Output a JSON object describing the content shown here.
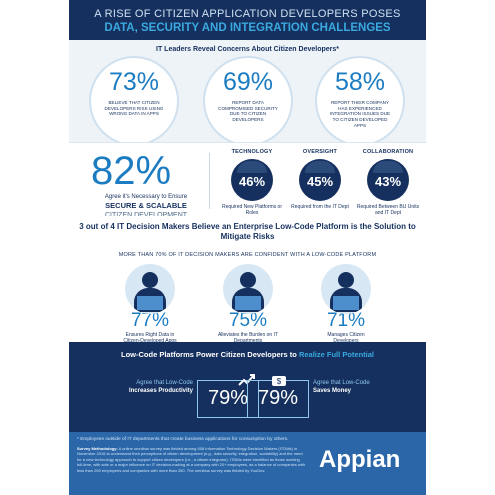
{
  "header": {
    "line1": "A RISE OF CITIZEN APPLICATION DEVELOPERS POSES",
    "line2": "DATA, SECURITY AND INTEGRATION CHALLENGES"
  },
  "concerns": {
    "heading": "IT Leaders Reveal Concerns About Citizen Developers*",
    "items": [
      {
        "pct": "73%",
        "caption": "BELIEVE THAT CITIZEN DEVELOPERS RISK USING WRONG DATA IN APPS"
      },
      {
        "pct": "69%",
        "caption": "REPORT DATA COMPROMISED SECURITY DUE TO CITIZEN DEVELOPERS"
      },
      {
        "pct": "58%",
        "caption": "REPORT THEIR COMPANY HAS EXPERIENCED INTEGRATION ISSUES DUE TO CITIZEN DEVELOPED APPS"
      }
    ]
  },
  "secure": {
    "pct": "82%",
    "line1": "Agree it's Necessary to Ensure",
    "line2": "SECURE & SCALABLE",
    "line3": "CITIZEN DEVELOPMENT",
    "stats": [
      {
        "label": "TECHNOLOGY",
        "pct": "46%",
        "sub": "Required New Platforms or Roles"
      },
      {
        "label": "OVERSIGHT",
        "pct": "45%",
        "sub": "Required from the IT Dept"
      },
      {
        "label": "COLLABORATION",
        "pct": "43%",
        "sub": "Required Between BU Units and IT Dept"
      }
    ]
  },
  "lowcode": {
    "heading": "3 out of 4 IT Decision Makers Believe an Enterprise Low-Code Platform is the Solution to Mitigate Risks",
    "sub": "MORE THAN 70% OF IT DECISION MAKERS ARE CONFIDENT WITH A LOW-CODE PLATFORM",
    "items": [
      {
        "pct": "77%",
        "caption": "Ensures Right Data in Citizen-Developed Apps"
      },
      {
        "pct": "75%",
        "caption": "Alleviates the Burden on IT Departments"
      },
      {
        "pct": "71%",
        "caption": "Manages Citizen Developers"
      }
    ]
  },
  "power": {
    "heading_a": "Low-Code Platforms Power Citizen Developers to ",
    "heading_b": "Realize Full Potential",
    "left_a": "Agree that Low-Code",
    "left_b": "Increases Productivity",
    "left_pct": "79%",
    "right_a": "Agree that Low-Code",
    "right_b": "Saves Money",
    "right_pct": "79%"
  },
  "footer": {
    "footnote": "* Employees outside of IT departments that create business applications for consumption by others.",
    "method_label": "Survey Methodology:",
    "method_text": "A online omnibus survey was fielded among 508 Information Technology Decision Makers (ITDMs) in November 2016 to understand their perceptions of citizen development (e.g., data security, integration, scalability) and the need for a new technology approach to support citizen developers (i.e., a citizen integrator). ITDMs were identified as those working full-time, with sole or a major influence on IT decision-making at a company with 20+ employees, as a balance of companies with less than 250 employees and companies with more than 250. The omnibus survey was fielded by YouGov.",
    "logo": "Appian",
    "tagline": ""
  }
}
